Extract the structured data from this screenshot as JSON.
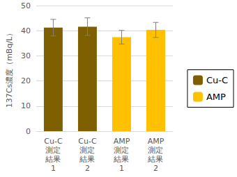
{
  "chart_data": {
    "type": "bar",
    "y_label": "137Cs濃度（mBq/L）",
    "categories": [
      "Cu-C\n測定\n結果\n1",
      "Cu-C\n測定\n結果\n2",
      "AMP\n測定\n結果\n1",
      "AMP\n測定\n結果\n2"
    ],
    "series": [
      {
        "name": "Cu-C",
        "color": "#7f6000",
        "values": [
          41.2,
          41.6,
          null,
          null
        ],
        "errors": [
          3.3,
          3.5,
          null,
          null
        ]
      },
      {
        "name": "AMP",
        "color": "#ffc000",
        "values": [
          null,
          null,
          37.4,
          40.3
        ],
        "errors": [
          null,
          null,
          2.7,
          3.0
        ]
      }
    ],
    "ylim": [
      0,
      50
    ],
    "yticks": [
      0,
      10,
      20,
      30,
      40,
      50
    ],
    "grid": true,
    "legend": "right"
  }
}
